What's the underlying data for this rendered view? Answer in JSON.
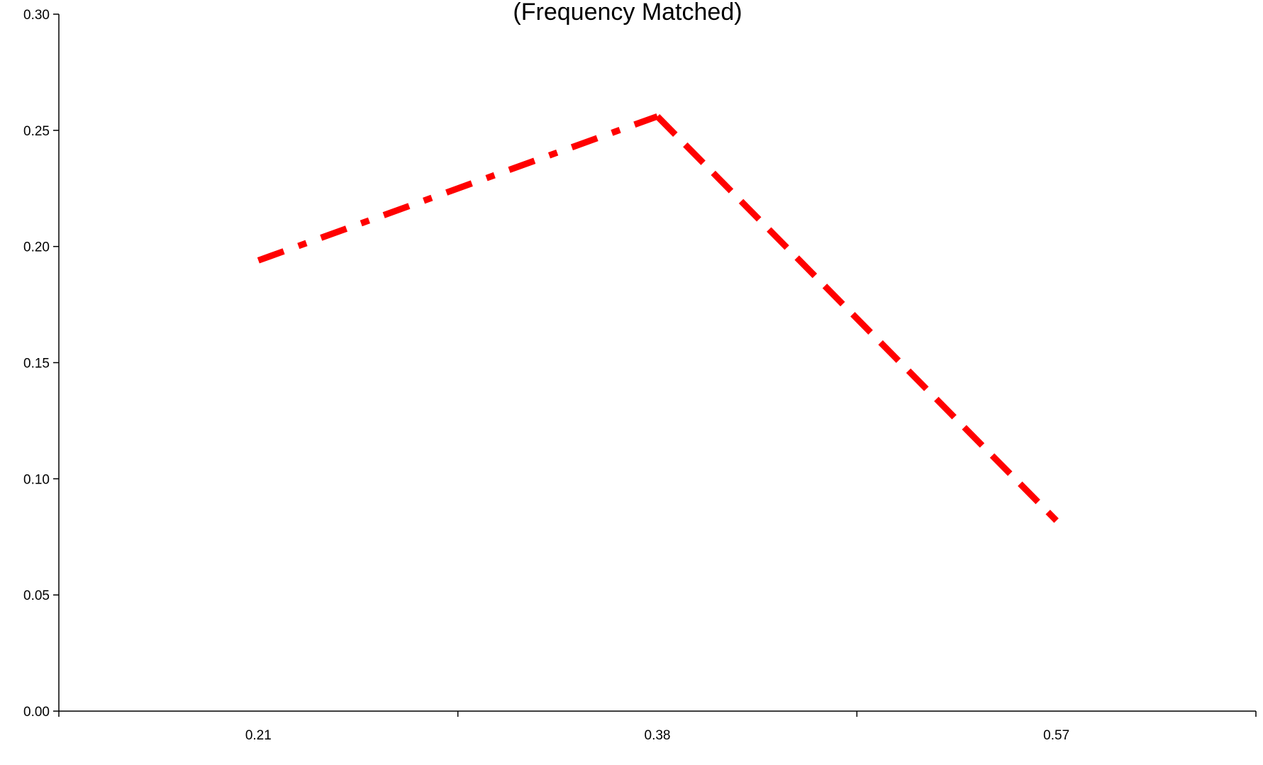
{
  "chart_data": {
    "type": "line",
    "title": "(Frequency Matched)",
    "xlabel": "",
    "ylabel": "",
    "categories": [
      "0.21",
      "0.38",
      "0.57"
    ],
    "series": [
      {
        "values": [
          0.194,
          0.256,
          0.082
        ],
        "color": "#ff0000",
        "segment_styles": [
          "dash-dot",
          "dashed"
        ]
      }
    ],
    "ylim": [
      0,
      0.3
    ],
    "yticks": [
      "0.00",
      "0.05",
      "0.10",
      "0.15",
      "0.20",
      "0.25",
      "0.30"
    ],
    "grid": false,
    "legend": "none"
  }
}
